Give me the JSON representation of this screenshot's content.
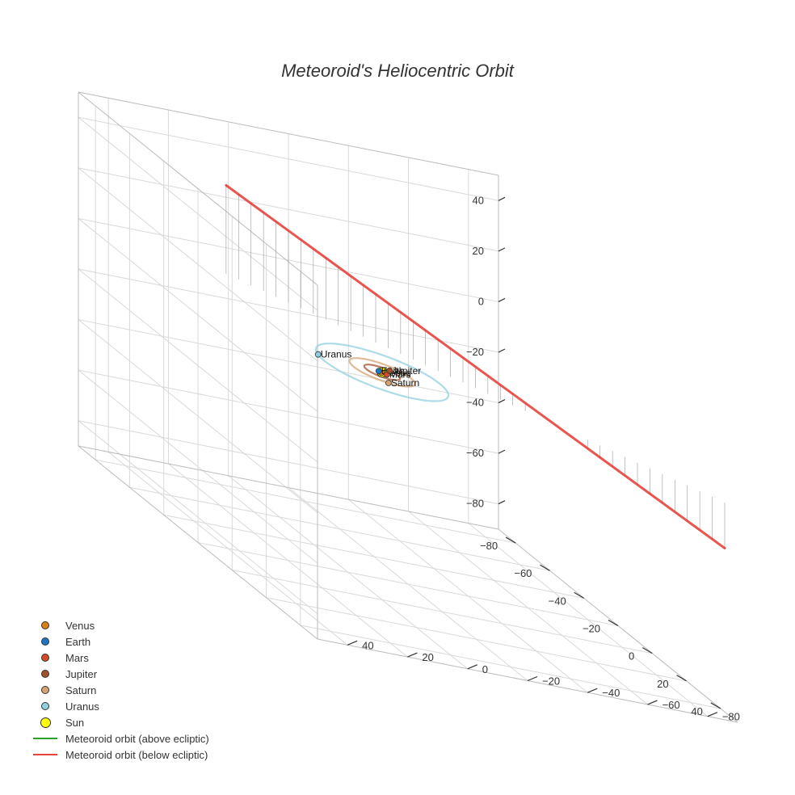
{
  "chart_data": {
    "type": "scatter3d",
    "title": "Meteoroid's Heliocentric Orbit",
    "axes": {
      "x": {
        "range": [
          -90,
          50
        ],
        "ticks": [
          -80,
          -60,
          -40,
          -20,
          0,
          20,
          40
        ],
        "tick_labels": [
          "−80",
          "−60",
          "−40",
          "−20",
          "0",
          "20",
          "40"
        ]
      },
      "y": {
        "range": [
          -90,
          50
        ],
        "ticks": [
          -80,
          -60,
          -40,
          -20,
          0,
          20,
          40
        ],
        "tick_labels": [
          "−80",
          "−60",
          "−40",
          "−20",
          "0",
          "20",
          "40"
        ]
      },
      "z": {
        "range": [
          -90,
          50
        ],
        "ticks": [
          -80,
          -60,
          -40,
          -20,
          0,
          20,
          40
        ],
        "tick_labels": [
          "−80",
          "−60",
          "−40",
          "−20",
          "0",
          "20",
          "40"
        ]
      }
    },
    "grid": true,
    "legend_position": "bottom-left",
    "planets": [
      {
        "name": "Venus",
        "color": "#d98019",
        "orbit_radius": 0.72,
        "position": [
          0.5,
          0.5,
          0
        ]
      },
      {
        "name": "Earth",
        "color": "#1f77c4",
        "orbit_radius": 1.0,
        "position": [
          -0.6,
          0.8,
          0
        ]
      },
      {
        "name": "Mars",
        "color": "#d24c2a",
        "orbit_radius": 1.52,
        "position": [
          1.2,
          -0.9,
          0
        ]
      },
      {
        "name": "Jupiter",
        "color": "#a0522d",
        "orbit_radius": 5.2,
        "position": [
          -3.0,
          -4.2,
          0
        ]
      },
      {
        "name": "Saturn",
        "color": "#d4a373",
        "orbit_radius": 9.5,
        "position": [
          9.0,
          3.0,
          0
        ]
      },
      {
        "name": "Uranus",
        "color": "#8fd0e0",
        "orbit_radius": 19.2,
        "position": [
          -5.0,
          18.5,
          0
        ]
      }
    ],
    "sun": {
      "name": "Sun",
      "color": "#ffff00",
      "position": [
        0,
        0,
        0
      ]
    },
    "series": [
      {
        "name": "Meteoroid orbit (above ecliptic)",
        "color": "#2ca02c",
        "points": []
      },
      {
        "name": "Meteoroid orbit (below ecliptic)",
        "color": "#e8423d",
        "points": [
          [
            60,
            -80,
            -18
          ],
          [
            -65,
            15,
            35
          ]
        ]
      }
    ]
  }
}
